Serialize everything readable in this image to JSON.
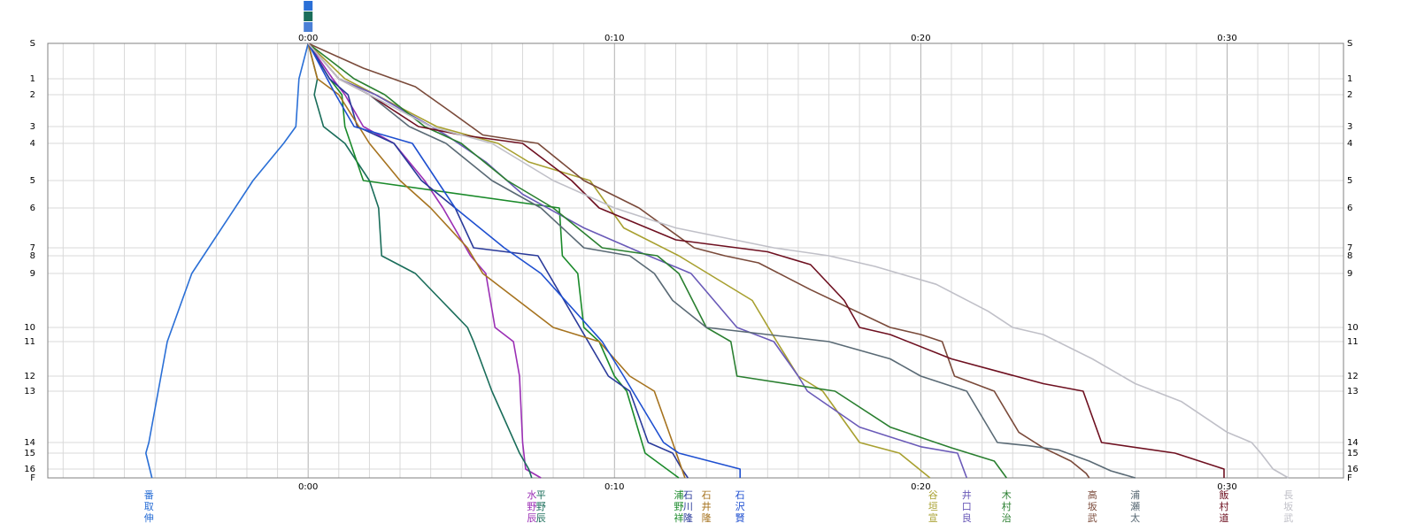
{
  "chart_data": {
    "type": "line",
    "x_ticks": [
      "0:00",
      "0:10",
      "0:20",
      "0:30"
    ],
    "x_tick_values_min": [
      0,
      10,
      20,
      30
    ],
    "xlim_min": [
      -8.5,
      33.8
    ],
    "y_ticks": [
      "S",
      "1",
      "2",
      "3",
      "4",
      "5",
      "6",
      "7",
      "8",
      "9",
      "10",
      "11",
      "12",
      "13",
      "14",
      "15",
      "16",
      "F"
    ],
    "y_tick_values": [
      0,
      1,
      2,
      3,
      4,
      5,
      6,
      7,
      8,
      9,
      10,
      11,
      12,
      13,
      14,
      15,
      16,
      17
    ],
    "grid": true,
    "series": [
      {
        "name": "番取伸",
        "color": "#2a6fd6",
        "label_x": -5.2,
        "x": [
          0,
          -0.3,
          -0.4,
          -0.8,
          -1.8,
          -3.8,
          -4.6,
          -5.2,
          -5.3,
          -5.1
        ],
        "y": [
          0,
          1,
          3,
          4,
          5,
          9,
          11,
          14,
          15,
          17
        ]
      },
      {
        "name": "水野辰",
        "color": "#9b2fb5",
        "label_x": 7.3,
        "x": [
          0,
          0.8,
          1.2,
          1.8,
          2.8,
          3.8,
          4.4,
          5.3,
          5.8,
          6.1,
          6.7,
          6.9,
          7.0,
          7.1,
          7.6
        ],
        "y": [
          0,
          1,
          2,
          3,
          4,
          5,
          6,
          8,
          9,
          10,
          11,
          12,
          14,
          16,
          17
        ]
      },
      {
        "name": "平野辰",
        "color": "#1a6d5a",
        "label_x": 7.6,
        "x": [
          0,
          0.3,
          0.2,
          0.5,
          1.2,
          2.0,
          2.3,
          2.4,
          3.5,
          5.2,
          5.4,
          6.0,
          6.9,
          7.2,
          7.3
        ],
        "y": [
          0,
          1,
          2,
          3,
          4,
          5,
          6,
          8,
          9,
          10,
          11,
          13,
          15,
          16,
          17
        ]
      },
      {
        "name": "浦野祥",
        "color": "#1a8a2a",
        "label_x": 12.1,
        "x": [
          0,
          0.7,
          1.1,
          1.2,
          1.8,
          8.2,
          8.3,
          8.8,
          9.0,
          9.5,
          10.0,
          10.4,
          11.0,
          12.1
        ],
        "y": [
          0,
          1,
          2,
          3,
          5,
          6,
          8,
          9,
          10,
          11,
          12,
          13,
          15,
          17
        ]
      },
      {
        "name": "石川隆",
        "color": "#2a3a9a",
        "label_x": 12.4,
        "x": [
          0,
          0.7,
          1.3,
          1.6,
          2.8,
          3.7,
          4.8,
          5.4,
          7.5,
          9.8,
          10.5,
          11.1,
          11.9,
          12.2,
          12.4
        ],
        "y": [
          0,
          1,
          2,
          3,
          4,
          5,
          6,
          7,
          8,
          12,
          13,
          14,
          15,
          16,
          17
        ]
      },
      {
        "name": "石井隆",
        "color": "#a6731f",
        "label_x": 13.0,
        "x": [
          0,
          0.3,
          1.0,
          2.0,
          3.0,
          4.0,
          5.2,
          5.7,
          8.0,
          9.5,
          10.5,
          11.3,
          11.9,
          12.3
        ],
        "y": [
          0,
          1,
          2,
          4,
          5,
          6,
          7,
          9,
          10,
          11,
          12,
          13,
          14,
          17
        ]
      },
      {
        "name": "石沢賢",
        "color": "#1e4fd0",
        "label_x": 14.1,
        "x": [
          0,
          0.9,
          1.5,
          3.4,
          4.8,
          6.4,
          7.6,
          9.6,
          10.3,
          11.6,
          12.1,
          14.1,
          14.1
        ],
        "y": [
          0,
          2,
          3,
          4,
          6,
          7,
          9,
          11,
          12,
          14,
          15,
          16,
          17
        ]
      },
      {
        "name": "谷垣宣",
        "color": "#a8a030",
        "label_x": 20.4,
        "x": [
          0,
          1.2,
          2.2,
          4.2,
          6.2,
          7.2,
          9.2,
          10.3,
          12.1,
          14.5,
          15.3,
          16.0,
          16.8,
          18.0,
          19.3,
          20.3
        ],
        "y": [
          0,
          1,
          2,
          3,
          4,
          4.5,
          5,
          6.5,
          8,
          9.5,
          11,
          12,
          13,
          14,
          15,
          17
        ]
      },
      {
        "name": "井口良",
        "color": "#6a5ab8",
        "label_x": 21.5,
        "x": [
          0,
          1.0,
          2.2,
          4.5,
          5.8,
          7.0,
          9.0,
          10.8,
          12.5,
          14.0,
          15.2,
          16.0,
          16.3,
          18.0,
          20.0,
          21.2,
          21.5
        ],
        "y": [
          0,
          1,
          2,
          3.5,
          4.5,
          5.5,
          6.5,
          7.5,
          9,
          10,
          11,
          12,
          13,
          13.7,
          14.4,
          15,
          17
        ]
      },
      {
        "name": "木村治",
        "color": "#2a7f30",
        "label_x": 22.8,
        "x": [
          0,
          1.5,
          2.5,
          3.8,
          5.0,
          6.5,
          8.0,
          9.6,
          11.4,
          12.1,
          13.0,
          13.8,
          14.0,
          17.2,
          19.0,
          21.0,
          22.4,
          22.8
        ],
        "y": [
          0,
          1,
          2,
          3,
          4,
          5,
          6,
          7,
          8,
          9,
          10,
          11,
          12,
          13,
          13.7,
          14.5,
          15.5,
          17
        ]
      },
      {
        "name": "高坂武",
        "color": "#7a4a3a",
        "label_x": 25.6,
        "x": [
          0,
          1.8,
          3.5,
          4.6,
          5.7,
          7.5,
          9.0,
          10.8,
          12.6,
          13.6,
          14.7,
          16.4,
          19.0,
          20.0,
          20.7,
          21.1,
          22.4,
          23.2,
          24.0,
          24.9,
          25.4,
          25.5
        ],
        "y": [
          0,
          0.7,
          1.5,
          2.5,
          3.5,
          4,
          5,
          6,
          7,
          8,
          8.4,
          9.3,
          10,
          10.5,
          11,
          12,
          13,
          13.8,
          14.5,
          15.5,
          16.5,
          17
        ]
      },
      {
        "name": "浦瀬太",
        "color": "#5a6a75",
        "label_x": 27.0,
        "x": [
          0,
          1.0,
          2.0,
          3.3,
          4.5,
          6.0,
          7.6,
          9.0,
          10.5,
          11.3,
          11.9,
          13.0,
          15.0,
          17.0,
          19.0,
          20.0,
          21.5,
          22.5,
          23.5,
          24.5,
          25.5,
          26.2,
          27.0
        ],
        "y": [
          0,
          1,
          2,
          3,
          4,
          5,
          6,
          7,
          8,
          9,
          9.5,
          10,
          10.5,
          11,
          11.5,
          12,
          13,
          14,
          14.3,
          14.7,
          15.5,
          16.2,
          17
        ]
      },
      {
        "name": "飯村道",
        "color": "#6e1020",
        "label_x": 29.9,
        "x": [
          0,
          1.0,
          2.0,
          3.6,
          5.0,
          7.0,
          8.6,
          9.5,
          12.0,
          15.0,
          16.4,
          17.5,
          18.0,
          19.0,
          21.0,
          24.0,
          25.3,
          25.9,
          28.3,
          29.9,
          29.9
        ],
        "y": [
          0,
          1,
          2,
          3,
          3.5,
          4,
          5,
          6,
          6.8,
          7.5,
          8.5,
          9.5,
          10,
          10.5,
          11.5,
          12.5,
          13,
          14,
          15,
          16,
          17
        ]
      },
      {
        "name": "長坂武",
        "color": "#c0c0c8",
        "label_x": 32.0,
        "x": [
          0,
          1.0,
          2.0,
          4.0,
          6.0,
          8.0,
          10.0,
          12.0,
          15.2,
          17.0,
          18.5,
          20.5,
          22.2,
          23.0,
          24.0,
          25.6,
          27.0,
          28.5,
          30.0,
          30.8,
          31.1,
          31.5,
          32.0
        ],
        "y": [
          0,
          1,
          2,
          3,
          4,
          5,
          6,
          6.5,
          7,
          8,
          8.6,
          9.2,
          9.7,
          10,
          10.5,
          11.5,
          12.5,
          13.2,
          13.8,
          14,
          15,
          16,
          17
        ]
      }
    ]
  }
}
